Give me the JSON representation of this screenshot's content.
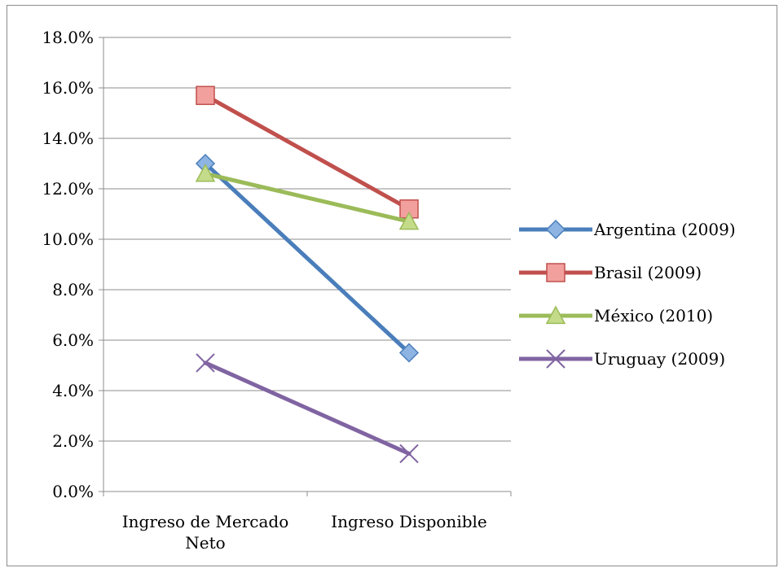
{
  "chart_data": {
    "type": "line",
    "categories": [
      "Ingreso de Mercado Neto",
      "Ingreso Disponible"
    ],
    "category_label_lines": [
      [
        "Ingreso de Mercado",
        "Neto"
      ],
      [
        "Ingreso Disponible"
      ]
    ],
    "ylim": [
      0,
      18
    ],
    "yticks": [
      0,
      2,
      4,
      6,
      8,
      10,
      12,
      14,
      16,
      18
    ],
    "ytick_labels": [
      "0.0%",
      "2.0%",
      "4.0%",
      "6.0%",
      "8.0%",
      "10.0%",
      "12.0%",
      "14.0%",
      "16.0%",
      "18.0%"
    ],
    "grid": true,
    "legend_position": "right",
    "series": [
      {
        "name": "Argentina (2009)",
        "values": [
          13.0,
          5.5
        ],
        "color": "#4a7ebb",
        "marker": "diamond",
        "marker_fill": "#8db4e2"
      },
      {
        "name": "Brasil (2009)",
        "values": [
          15.7,
          11.2
        ],
        "color": "#c0504d",
        "marker": "square",
        "marker_fill": "#f2a09e"
      },
      {
        "name": "México  (2010)",
        "values": [
          12.6,
          10.7
        ],
        "color": "#9bbb59",
        "marker": "triangle",
        "marker_fill": "#c4dc8a"
      },
      {
        "name": "Uruguay (2009)",
        "values": [
          5.1,
          1.5
        ],
        "color": "#8064a2",
        "marker": "x",
        "marker_fill": "#8064a2"
      }
    ]
  }
}
